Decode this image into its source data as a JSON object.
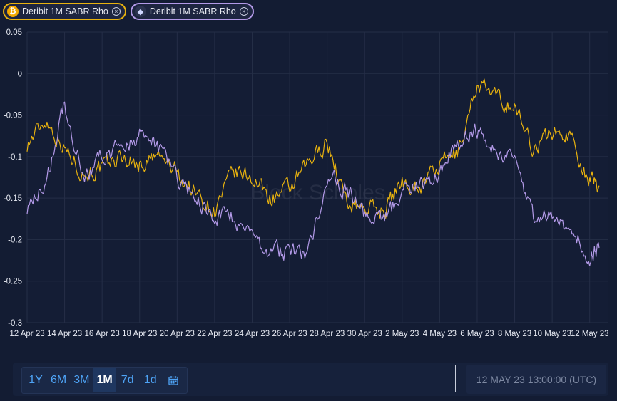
{
  "legend": {
    "items": [
      {
        "label": "Deribit 1M SABR Rho",
        "coin": "btc-icon",
        "color": "#e8b20f"
      },
      {
        "label": "Deribit 1M SABR Rho",
        "coin": "eth-icon",
        "color": "#b39ae8"
      }
    ]
  },
  "watermark": "Block Scholes",
  "controls": {
    "ranges": [
      "1Y",
      "6M",
      "3M",
      "1M",
      "7d",
      "1d"
    ],
    "active_range": "1M",
    "calendar_icon": "calendar-icon",
    "timestamp": "12 MAY 23 13:00:00 (UTC)"
  },
  "colors": {
    "btc": "#e8b20f",
    "eth": "#b39ae8",
    "background": "#131c33",
    "grid": "#252e47"
  },
  "chart_data": {
    "type": "line",
    "title": "",
    "xlabel": "",
    "ylabel": "",
    "ylim": [
      -0.3,
      0.05
    ],
    "yticks": [
      "0.05",
      "0",
      "-0.05",
      "-0.1",
      "-0.15",
      "-0.2",
      "-0.25",
      "-0.3"
    ],
    "xlim": [
      "12 Apr 23",
      "13 May 23"
    ],
    "xticks": [
      "12 Apr 23",
      "14 Apr 23",
      "16 Apr 23",
      "18 Apr 23",
      "20 Apr 23",
      "22 Apr 23",
      "24 Apr 23",
      "26 Apr 23",
      "28 Apr 23",
      "30 Apr 23",
      "2 May 23",
      "4 May 23",
      "6 May 23",
      "8 May 23",
      "10 May 23",
      "12 May 23"
    ],
    "grid": true,
    "x": [
      "12 Apr 23",
      "13 Apr 23",
      "14 Apr 23",
      "15 Apr 23",
      "16 Apr 23",
      "17 Apr 23",
      "18 Apr 23",
      "19 Apr 23",
      "20 Apr 23",
      "21 Apr 23",
      "22 Apr 23",
      "23 Apr 23",
      "24 Apr 23",
      "25 Apr 23",
      "26 Apr 23",
      "27 Apr 23",
      "28 Apr 23",
      "29 Apr 23",
      "30 Apr 23",
      "1 May 23",
      "2 May 23",
      "3 May 23",
      "4 May 23",
      "5 May 23",
      "6 May 23",
      "7 May 23",
      "8 May 23",
      "9 May 23",
      "10 May 23",
      "11 May 23",
      "12 May 23",
      "12.5 May 23"
    ],
    "series": [
      {
        "name": "BTC",
        "color": "#e8b20f",
        "values": [
          -0.085,
          -0.055,
          -0.09,
          -0.12,
          -0.115,
          -0.1,
          -0.11,
          -0.1,
          -0.12,
          -0.145,
          -0.165,
          -0.12,
          -0.125,
          -0.15,
          -0.14,
          -0.11,
          -0.08,
          -0.155,
          -0.16,
          -0.165,
          -0.13,
          -0.135,
          -0.11,
          -0.095,
          -0.01,
          -0.03,
          -0.04,
          -0.09,
          -0.07,
          -0.075,
          -0.13,
          -0.135
        ]
      },
      {
        "name": "ETH",
        "color": "#b39ae8",
        "values": [
          -0.16,
          -0.135,
          -0.035,
          -0.125,
          -0.1,
          -0.09,
          -0.075,
          -0.09,
          -0.125,
          -0.15,
          -0.175,
          -0.175,
          -0.195,
          -0.215,
          -0.215,
          -0.215,
          -0.12,
          -0.14,
          -0.17,
          -0.18,
          -0.14,
          -0.135,
          -0.12,
          -0.08,
          -0.07,
          -0.09,
          -0.11,
          -0.175,
          -0.17,
          -0.19,
          -0.22,
          -0.21
        ]
      }
    ]
  }
}
